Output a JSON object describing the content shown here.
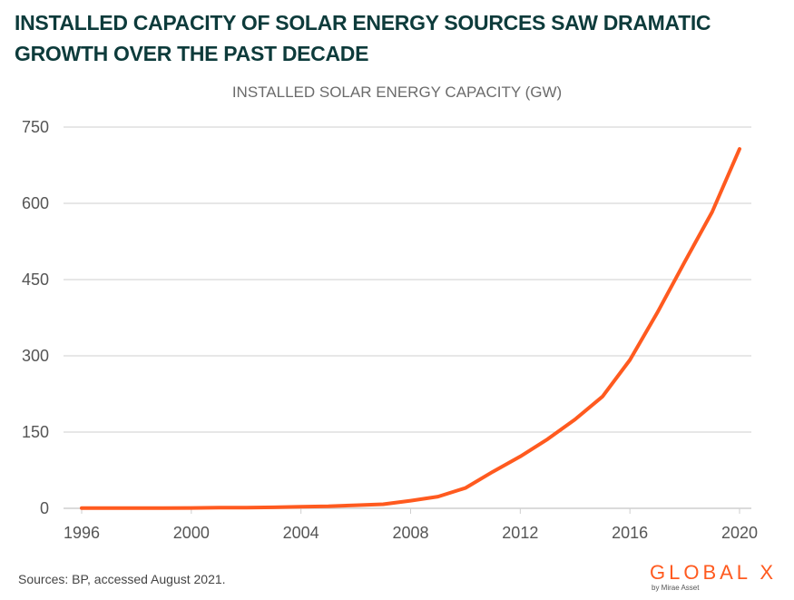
{
  "headline": "INSTALLED CAPACITY OF SOLAR ENERGY SOURCES SAW DRAMATIC GROWTH OVER THE PAST DECADE",
  "footer": {
    "source": "Sources: BP, accessed August 2021.",
    "logo_text": "GLOBAL X",
    "logo_subtext": "by Mirae Asset"
  },
  "colors": {
    "line": "#ff5a1f",
    "headline": "#0d3b3b",
    "grid": "#cfcfcf",
    "logo": "#ff5a1f"
  },
  "chart_data": {
    "type": "line",
    "title": "INSTALLED SOLAR ENERGY CAPACITY (GW)",
    "xlabel": "",
    "ylabel": "",
    "x": [
      1996,
      1997,
      1998,
      1999,
      2000,
      2001,
      2002,
      2003,
      2004,
      2005,
      2006,
      2007,
      2008,
      2009,
      2010,
      2011,
      2012,
      2013,
      2014,
      2015,
      2016,
      2017,
      2018,
      2019,
      2020
    ],
    "series": [
      {
        "values": [
          0.3,
          0.4,
          0.5,
          0.6,
          0.8,
          1.2,
          1.5,
          2,
          3,
          4,
          6,
          8,
          15,
          23,
          40,
          72,
          102,
          136,
          175,
          220,
          292,
          385,
          485,
          583,
          707
        ]
      }
    ],
    "xlim": [
      1996,
      2020
    ],
    "ylim": [
      0,
      750
    ],
    "x_ticks": [
      1996,
      2000,
      2004,
      2008,
      2012,
      2016,
      2020
    ],
    "y_ticks": [
      0,
      150,
      300,
      450,
      600,
      750
    ],
    "grid": "horizontal",
    "legend": "none"
  }
}
